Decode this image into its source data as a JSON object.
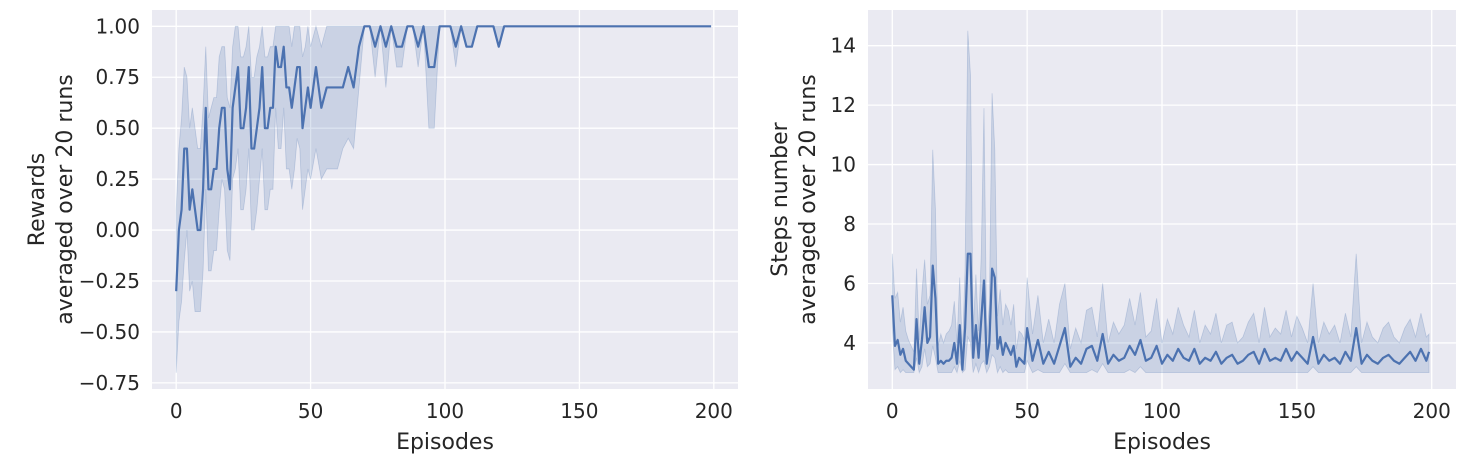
{
  "chart_data": [
    {
      "type": "line",
      "xlabel": "Episodes",
      "ylabel_lines": [
        "Rewards",
        "averaged over 20 runs"
      ],
      "xlim": [
        -9,
        209
      ],
      "ylim": [
        -0.78,
        1.08
      ],
      "xticks": [
        0,
        50,
        100,
        150,
        200
      ],
      "xtick_labels": [
        "0",
        "50",
        "100",
        "150",
        "200"
      ],
      "yticks": [
        -0.75,
        -0.5,
        -0.25,
        0.0,
        0.25,
        0.5,
        0.75,
        1.0
      ],
      "ytick_labels": [
        "−0.75",
        "−0.50",
        "−0.25",
        "0.00",
        "0.25",
        "0.50",
        "0.75",
        "1.00"
      ],
      "grid": true,
      "series": [
        {
          "color": "#4c72b0",
          "x": [
            0,
            1,
            2,
            3,
            4,
            5,
            6,
            7,
            8,
            9,
            10,
            11,
            12,
            13,
            14,
            15,
            16,
            17,
            18,
            19,
            20,
            21,
            22,
            23,
            24,
            25,
            26,
            27,
            28,
            29,
            30,
            31,
            32,
            33,
            34,
            35,
            36,
            37,
            38,
            39,
            40,
            41,
            42,
            43,
            44,
            45,
            46,
            47,
            48,
            49,
            50,
            52,
            54,
            56,
            58,
            60,
            62,
            64,
            66,
            68,
            70,
            72,
            74,
            76,
            78,
            80,
            82,
            84,
            86,
            88,
            90,
            92,
            94,
            96,
            98,
            100,
            102,
            104,
            106,
            108,
            110,
            112,
            114,
            116,
            118,
            120,
            122,
            124,
            126,
            128,
            130,
            132,
            134,
            136,
            138,
            140,
            145,
            150,
            160,
            170,
            180,
            190,
            199
          ],
          "y": [
            -0.3,
            0.0,
            0.1,
            0.4,
            0.4,
            0.1,
            0.2,
            0.1,
            0.0,
            0.0,
            0.2,
            0.6,
            0.2,
            0.2,
            0.3,
            0.3,
            0.5,
            0.6,
            0.6,
            0.3,
            0.2,
            0.6,
            0.7,
            0.8,
            0.5,
            0.5,
            0.6,
            0.8,
            0.4,
            0.4,
            0.5,
            0.6,
            0.8,
            0.5,
            0.5,
            0.6,
            0.6,
            0.9,
            0.8,
            0.8,
            0.9,
            0.7,
            0.7,
            0.6,
            0.7,
            0.8,
            0.8,
            0.5,
            0.6,
            0.7,
            0.6,
            0.8,
            0.6,
            0.7,
            0.7,
            0.7,
            0.7,
            0.8,
            0.7,
            0.9,
            1.0,
            1.0,
            0.9,
            1.0,
            0.9,
            1.0,
            0.9,
            0.9,
            1.0,
            1.0,
            0.9,
            1.0,
            0.8,
            0.8,
            1.0,
            1.0,
            1.0,
            0.9,
            1.0,
            0.9,
            0.9,
            1.0,
            1.0,
            1.0,
            1.0,
            0.9,
            1.0,
            1.0,
            1.0,
            1.0,
            1.0,
            1.0,
            1.0,
            1.0,
            1.0,
            1.0,
            1.0,
            1.0,
            1.0,
            1.0,
            1.0,
            1.0,
            1.0
          ],
          "ci_lower": [
            -0.7,
            -0.45,
            -0.35,
            -0.15,
            0.0,
            -0.3,
            -0.25,
            -0.4,
            -0.4,
            -0.4,
            -0.2,
            0.2,
            -0.2,
            -0.2,
            -0.1,
            -0.1,
            0.1,
            0.25,
            0.2,
            -0.1,
            -0.15,
            0.25,
            0.3,
            0.4,
            0.1,
            0.1,
            0.2,
            0.4,
            0.0,
            0.0,
            0.1,
            0.25,
            0.4,
            0.1,
            0.1,
            0.2,
            0.2,
            0.6,
            0.4,
            0.4,
            0.6,
            0.3,
            0.3,
            0.2,
            0.3,
            0.45,
            0.4,
            0.1,
            0.2,
            0.3,
            0.25,
            0.4,
            0.25,
            0.3,
            0.3,
            0.3,
            0.4,
            0.45,
            0.4,
            0.7,
            1.0,
            1.0,
            0.75,
            1.0,
            0.7,
            1.0,
            0.8,
            0.8,
            1.0,
            1.0,
            0.8,
            1.0,
            0.5,
            0.5,
            1.0,
            1.0,
            1.0,
            0.8,
            1.0,
            0.9,
            0.9,
            1.0,
            1.0,
            1.0,
            1.0,
            0.9,
            1.0,
            1.0,
            1.0,
            1.0,
            1.0,
            1.0,
            1.0,
            1.0,
            1.0,
            1.0,
            1.0,
            1.0,
            1.0,
            1.0,
            1.0,
            1.0,
            1.0
          ],
          "ci_upper": [
            0.1,
            0.4,
            0.55,
            0.8,
            0.75,
            0.5,
            0.6,
            0.5,
            0.4,
            0.4,
            0.6,
            0.9,
            0.55,
            0.6,
            0.65,
            0.65,
            0.85,
            0.9,
            0.9,
            0.65,
            0.6,
            0.9,
            1.0,
            1.0,
            0.85,
            0.85,
            0.9,
            1.0,
            0.75,
            0.75,
            0.85,
            0.9,
            1.0,
            0.85,
            0.85,
            0.9,
            0.9,
            1.0,
            1.0,
            1.0,
            1.0,
            1.0,
            1.0,
            0.9,
            1.0,
            1.0,
            1.0,
            0.85,
            0.9,
            1.0,
            0.9,
            1.0,
            0.9,
            1.0,
            1.0,
            1.0,
            1.0,
            1.0,
            1.0,
            1.0,
            1.0,
            1.0,
            1.0,
            1.0,
            1.0,
            1.0,
            1.0,
            1.0,
            1.0,
            1.0,
            1.0,
            1.0,
            1.0,
            1.0,
            1.0,
            1.0,
            1.0,
            1.0,
            1.0,
            1.0,
            1.0,
            1.0,
            1.0,
            1.0,
            1.0,
            1.0,
            1.0,
            1.0,
            1.0,
            1.0,
            1.0,
            1.0,
            1.0,
            1.0,
            1.0,
            1.0,
            1.0,
            1.0,
            1.0,
            1.0,
            1.0,
            1.0,
            1.0
          ]
        }
      ]
    },
    {
      "type": "line",
      "xlabel": "Episodes",
      "ylabel_lines": [
        "Steps number",
        "averaged over 20 runs"
      ],
      "xlim": [
        -9,
        209
      ],
      "ylim": [
        2.45,
        15.2
      ],
      "xticks": [
        0,
        50,
        100,
        150,
        200
      ],
      "xtick_labels": [
        "0",
        "50",
        "100",
        "150",
        "200"
      ],
      "yticks": [
        4,
        6,
        8,
        10,
        12,
        14
      ],
      "ytick_labels": [
        "4",
        "6",
        "8",
        "10",
        "12",
        "14"
      ],
      "grid": true,
      "series": [
        {
          "color": "#4c72b0",
          "x": [
            0,
            1,
            2,
            3,
            4,
            5,
            6,
            7,
            8,
            9,
            10,
            11,
            12,
            13,
            14,
            15,
            16,
            17,
            18,
            19,
            20,
            21,
            22,
            23,
            24,
            25,
            26,
            27,
            28,
            29,
            30,
            31,
            32,
            33,
            34,
            35,
            36,
            37,
            38,
            39,
            40,
            41,
            42,
            43,
            44,
            45,
            46,
            47,
            48,
            49,
            50,
            52,
            54,
            56,
            58,
            60,
            62,
            64,
            66,
            68,
            70,
            72,
            74,
            76,
            78,
            80,
            82,
            84,
            86,
            88,
            90,
            92,
            94,
            96,
            98,
            100,
            102,
            104,
            106,
            108,
            110,
            112,
            114,
            116,
            118,
            120,
            122,
            124,
            126,
            128,
            130,
            132,
            134,
            136,
            138,
            140,
            142,
            144,
            146,
            148,
            150,
            152,
            154,
            156,
            158,
            160,
            162,
            164,
            166,
            168,
            170,
            172,
            174,
            176,
            178,
            180,
            182,
            184,
            186,
            188,
            190,
            192,
            194,
            196,
            198,
            199
          ],
          "y": [
            5.6,
            3.9,
            4.1,
            3.6,
            3.8,
            3.4,
            3.3,
            3.2,
            3.1,
            4.8,
            3.3,
            4.1,
            5.2,
            4.0,
            4.2,
            6.6,
            5.5,
            3.3,
            3.4,
            3.3,
            3.4,
            3.4,
            3.5,
            4.0,
            3.3,
            4.6,
            3.1,
            4.5,
            7.0,
            7.0,
            3.5,
            4.6,
            3.5,
            4.8,
            6.1,
            3.3,
            4.0,
            6.5,
            6.2,
            3.8,
            4.2,
            3.6,
            4.0,
            3.8,
            3.6,
            3.9,
            3.2,
            3.5,
            3.4,
            3.3,
            4.5,
            3.4,
            4.1,
            3.3,
            3.7,
            3.3,
            3.9,
            4.5,
            3.2,
            3.5,
            3.3,
            3.8,
            3.9,
            3.4,
            4.3,
            3.3,
            3.6,
            3.4,
            3.5,
            3.9,
            3.6,
            4.1,
            3.4,
            3.5,
            3.9,
            3.3,
            3.6,
            3.4,
            3.8,
            3.5,
            3.4,
            3.8,
            3.3,
            3.5,
            3.4,
            3.7,
            3.3,
            3.5,
            3.6,
            3.3,
            3.4,
            3.6,
            3.7,
            3.3,
            3.8,
            3.4,
            3.5,
            3.4,
            3.8,
            3.4,
            3.7,
            3.5,
            3.3,
            4.2,
            3.3,
            3.6,
            3.4,
            3.5,
            3.3,
            3.7,
            3.4,
            4.5,
            3.3,
            3.6,
            3.4,
            3.3,
            3.5,
            3.6,
            3.4,
            3.3,
            3.5,
            3.7,
            3.4,
            3.8,
            3.4,
            3.7
          ],
          "ci_lower": [
            4.5,
            3.1,
            3.2,
            3.0,
            3.1,
            3.0,
            3.0,
            3.0,
            3.0,
            3.5,
            3.0,
            3.2,
            3.8,
            3.2,
            3.3,
            3.9,
            3.5,
            3.0,
            3.0,
            3.0,
            3.0,
            3.0,
            3.0,
            3.2,
            3.0,
            3.4,
            3.0,
            3.1,
            4.2,
            4.0,
            3.0,
            3.3,
            3.0,
            3.3,
            3.4,
            3.0,
            3.2,
            3.6,
            3.5,
            3.0,
            3.2,
            3.0,
            3.1,
            3.0,
            3.0,
            3.0,
            3.0,
            3.0,
            3.0,
            3.0,
            3.4,
            3.0,
            3.1,
            3.0,
            3.0,
            3.0,
            3.0,
            3.3,
            3.0,
            3.0,
            3.0,
            3.0,
            3.1,
            3.0,
            3.3,
            3.0,
            3.0,
            3.0,
            3.0,
            3.1,
            3.0,
            3.2,
            3.0,
            3.0,
            3.0,
            3.0,
            3.0,
            3.0,
            3.0,
            3.0,
            3.0,
            3.0,
            3.0,
            3.0,
            3.0,
            3.0,
            3.0,
            3.0,
            3.0,
            3.0,
            3.0,
            3.0,
            3.0,
            3.0,
            3.0,
            3.0,
            3.0,
            3.0,
            3.0,
            3.0,
            3.0,
            3.0,
            3.0,
            3.2,
            3.0,
            3.0,
            3.0,
            3.0,
            3.0,
            3.0,
            3.0,
            3.2,
            3.0,
            3.0,
            3.0,
            3.0,
            3.0,
            3.0,
            3.0,
            3.0,
            3.0,
            3.0,
            3.0,
            3.0,
            3.0,
            3.0
          ],
          "ci_upper": [
            7.0,
            5.5,
            5.7,
            4.7,
            5.2,
            4.4,
            4.1,
            3.9,
            3.7,
            6.5,
            4.1,
            5.7,
            6.8,
            5.3,
            5.6,
            10.5,
            8.5,
            3.9,
            4.3,
            4.0,
            4.3,
            4.4,
            4.6,
            5.4,
            4.0,
            6.2,
            3.7,
            6.5,
            14.5,
            13.0,
            4.4,
            6.3,
            4.4,
            7.0,
            11.9,
            4.1,
            5.3,
            12.4,
            10.5,
            4.9,
            5.8,
            4.6,
            5.3,
            5.1,
            4.6,
            5.3,
            3.8,
            4.4,
            4.3,
            4.1,
            6.2,
            4.3,
            5.6,
            4.0,
            4.8,
            4.0,
            5.3,
            6.0,
            3.8,
            4.5,
            4.0,
            5.1,
            5.2,
            4.2,
            6.0,
            4.0,
            4.7,
            4.3,
            4.6,
            5.5,
            4.6,
            5.7,
            4.2,
            4.4,
            5.5,
            4.0,
            4.8,
            4.3,
            5.2,
            4.6,
            4.2,
            5.1,
            4.0,
            4.6,
            4.3,
            5.0,
            4.0,
            4.6,
            4.7,
            4.0,
            4.2,
            4.7,
            5.0,
            4.0,
            5.2,
            4.2,
            4.5,
            4.3,
            5.1,
            4.2,
            4.9,
            4.5,
            4.0,
            6.0,
            4.0,
            4.7,
            4.3,
            4.6,
            4.0,
            5.0,
            4.2,
            7.0,
            4.0,
            4.7,
            4.2,
            4.0,
            4.5,
            4.7,
            4.2,
            4.0,
            4.5,
            4.8,
            4.2,
            5.0,
            4.2,
            4.3
          ]
        }
      ]
    }
  ]
}
